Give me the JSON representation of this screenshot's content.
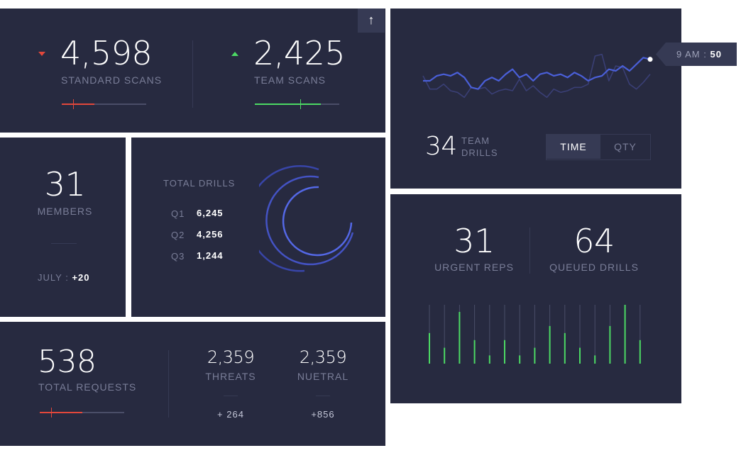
{
  "colors": {
    "card": "#272a40",
    "accent_blue": "#4a5fd8",
    "green": "#4cd964",
    "red": "#e2473b",
    "muted": "#7a7e98"
  },
  "icons": {
    "upload": "arrow-up-icon"
  },
  "scans": {
    "upload_glyph": "↑",
    "standard": {
      "value": "4,598",
      "label": "STANDARD SCANS",
      "trend": "down",
      "progress": 0.39
    },
    "team": {
      "value": "2,425",
      "label": "TEAM SCANS",
      "trend": "up",
      "progress": 0.78
    }
  },
  "members": {
    "value": "31",
    "label": "MEMBERS",
    "month": "JULY : ",
    "delta": "+20"
  },
  "total_drills": {
    "title": "TOTAL DRILLS",
    "rows": [
      {
        "q": "Q1",
        "value": "6,245"
      },
      {
        "q": "Q2",
        "value": "4,256"
      },
      {
        "q": "Q3",
        "value": "1,244"
      }
    ],
    "arc_fractions": [
      0.75,
      0.68,
      0.78
    ]
  },
  "requests": {
    "value": "538",
    "label": "TOTAL REQUESTS",
    "progress": 0.5,
    "threats": {
      "value": "2,359",
      "label": "THREATS",
      "delta": "+ 264"
    },
    "neutral": {
      "value": "2,359",
      "label": "NUETRAL",
      "delta": "+856"
    }
  },
  "team_drills": {
    "value": "34",
    "label_line1": "TEAM",
    "label_line2": "DRILLS",
    "tooltip_time": "9 AM : ",
    "tooltip_value": "50",
    "toggle": {
      "time": "TIME",
      "qty": "QTY",
      "active": "TIME"
    },
    "chart_data": {
      "type": "line",
      "series": [
        {
          "values": [
            24,
            24,
            30,
            32,
            30,
            34,
            28,
            16,
            14,
            24,
            28,
            24,
            32,
            38,
            28,
            32,
            24,
            32,
            34,
            30,
            32,
            28,
            34,
            30,
            24,
            28,
            30,
            38,
            36,
            42,
            36,
            44,
            52,
            50
          ]
        },
        {
          "values": [
            30,
            14,
            14,
            20,
            12,
            10,
            4,
            16,
            14,
            16,
            8,
            12,
            14,
            12,
            26,
            12,
            18,
            10,
            4,
            14,
            10,
            12,
            16,
            16,
            20,
            54,
            56,
            24,
            42,
            40,
            20,
            14,
            22,
            32
          ]
        }
      ]
    }
  },
  "reps": {
    "urgent": {
      "value": "31",
      "label": "URGENT REPS"
    },
    "queued": {
      "value": "64",
      "label": "QUEUED DRILLS"
    },
    "chart_data": {
      "type": "bar",
      "values": [
        0.52,
        0.27,
        0.88,
        0.4,
        0.14,
        0.4,
        0.14,
        0.27,
        0.64,
        0.52,
        0.27,
        0.14,
        0.64,
        1.0,
        0.4
      ]
    }
  }
}
